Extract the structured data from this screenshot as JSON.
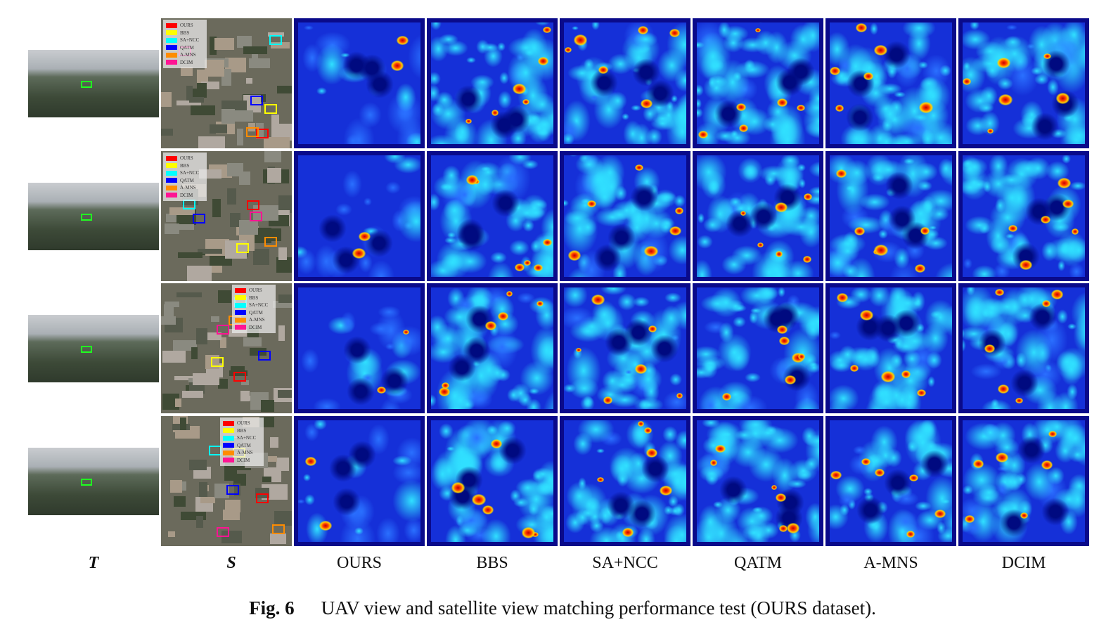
{
  "figure": {
    "column_labels": [
      "T",
      "S",
      "OURS",
      "BBS",
      "SA+NCC",
      "QATM",
      "A-MNS",
      "DCIM"
    ],
    "caption_label": "Fig. 6",
    "caption_text": "UAV view and satellite view matching performance test (OURS dataset).",
    "legend": [
      {
        "label": "OURS",
        "color": "#ff0000"
      },
      {
        "label": "BBS",
        "color": "#ffff00"
      },
      {
        "label": "SA+NCC",
        "color": "#00ffff"
      },
      {
        "label": "QATM",
        "color": "#0000ff"
      },
      {
        "label": "A-MNS",
        "color": "#ff8c00"
      },
      {
        "label": "DCIM",
        "color": "#ff1493"
      }
    ],
    "rows": 4,
    "colormap": "jet"
  }
}
